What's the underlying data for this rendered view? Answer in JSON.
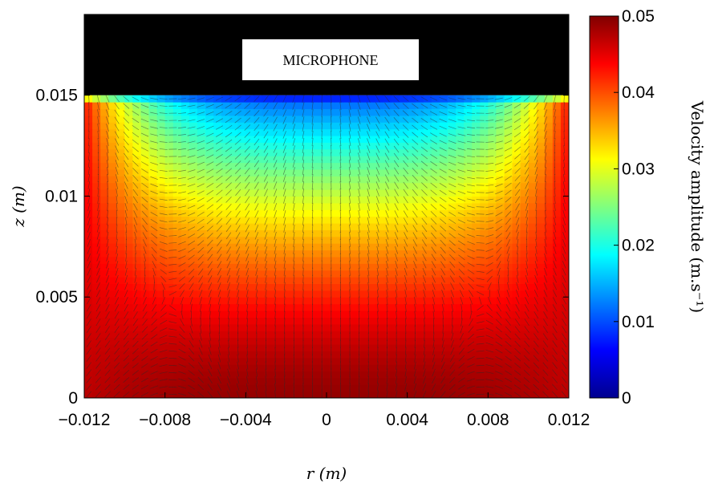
{
  "chart_data": {
    "type": "heatmap",
    "title": "",
    "xlabel": "r (m)",
    "ylabel": "z (m)",
    "xlim": [
      -0.012,
      0.012
    ],
    "ylim": [
      0,
      0.019
    ],
    "x_ticks": [
      "−0.012",
      "−0.008",
      "−0.004",
      "0",
      "0.004",
      "0.008",
      "0.012"
    ],
    "x_tick_values": [
      -0.012,
      -0.008,
      -0.004,
      0,
      0.004,
      0.008,
      0.012
    ],
    "y_ticks": [
      "0",
      "0.005",
      "0.01",
      "0.015"
    ],
    "y_tick_values": [
      0,
      0.005,
      0.01,
      0.015
    ],
    "colorbar": {
      "label": "Velocity amplitude (m.s⁻¹)",
      "min": 0,
      "max": 0.05,
      "ticks": [
        "0",
        "0.01",
        "0.02",
        "0.03",
        "0.04",
        "0.05"
      ],
      "tick_values": [
        0,
        0.01,
        0.02,
        0.03,
        0.04,
        0.05
      ],
      "colormap": "jet"
    },
    "field_top_z": 0.015,
    "overlay": "velocity vectors (quiver) on a regular grid",
    "microphone_region": {
      "r_range": [
        -0.012,
        0.012
      ],
      "z_range": [
        0.015,
        0.019
      ]
    },
    "annotations": [
      "MICROPHONE"
    ],
    "field_profile": {
      "description": "velocity amplitude vs z at centre and walls",
      "z": [
        0,
        0.005,
        0.01,
        0.0125,
        0.015
      ],
      "center_r0": [
        0.047,
        0.042,
        0.033,
        0.022,
        0.01
      ],
      "near_walls": [
        0.048,
        0.047,
        0.045,
        0.044,
        0.035
      ]
    }
  },
  "colors": {
    "microphone_fill": "#000000",
    "label_box": "#ffffff",
    "vector_color": "#2a2a2a"
  }
}
